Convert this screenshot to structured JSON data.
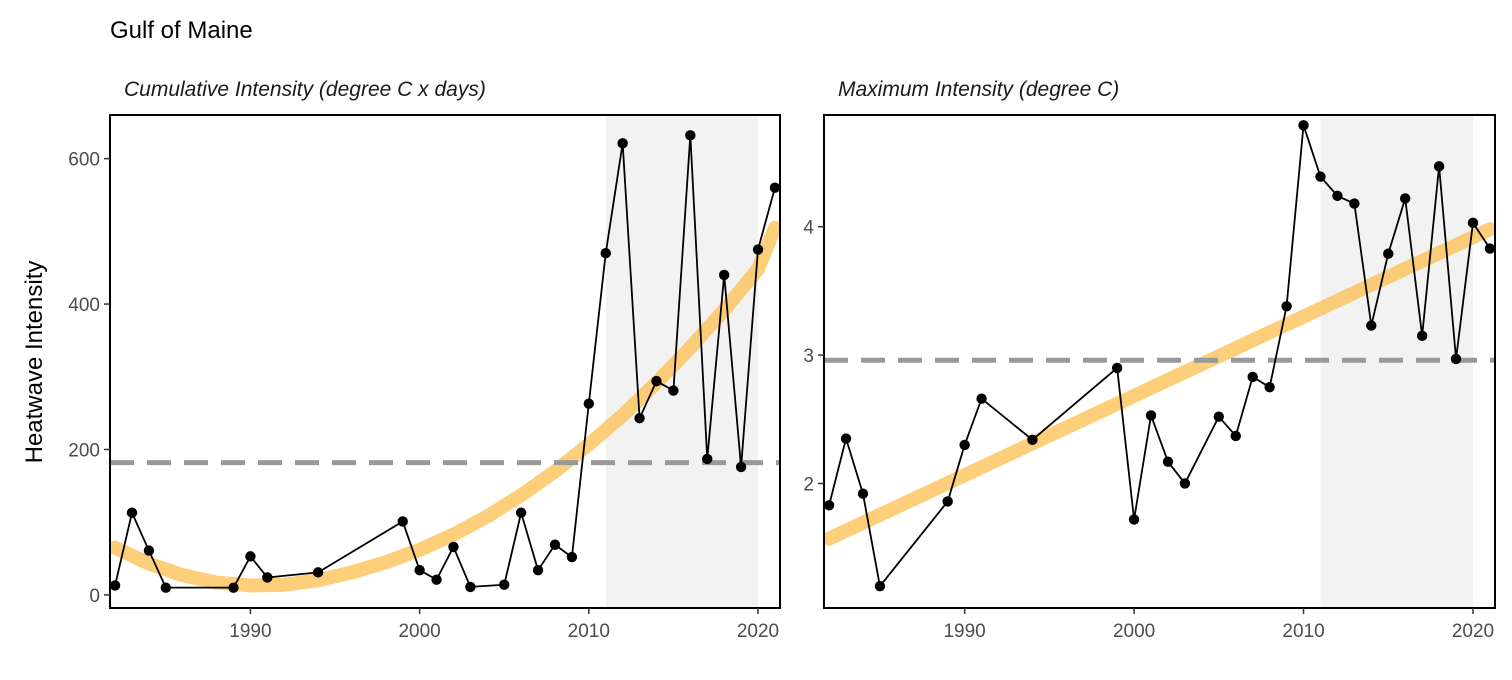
{
  "title": "Gulf of Maine",
  "ylabel": "Heatwave Intensity",
  "chart_data": [
    {
      "type": "line",
      "facet_title": "Cumulative Intensity (degree C x days)",
      "xlim": [
        1981.7,
        2021.3
      ],
      "ylim": [
        -18,
        660
      ],
      "x_ticks": [
        1990,
        2000,
        2010,
        2020
      ],
      "y_ticks": [
        0,
        200,
        400,
        600
      ],
      "grid": false,
      "shaded_period": [
        2011,
        2020
      ],
      "reference_line": 182,
      "series": [
        {
          "type": "line+points",
          "points": [
            [
              1982,
              13
            ],
            [
              1983,
              113
            ],
            [
              1984,
              61
            ],
            [
              1985,
              10
            ],
            [
              1989,
              10
            ],
            [
              1990,
              53
            ],
            [
              1991,
              24
            ],
            [
              1994,
              31
            ],
            [
              1999,
              101
            ],
            [
              2000,
              34
            ],
            [
              2001,
              21
            ],
            [
              2002,
              66
            ],
            [
              2003,
              11
            ],
            [
              2005,
              14
            ],
            [
              2006,
              113
            ],
            [
              2007,
              34
            ],
            [
              2008,
              69
            ],
            [
              2009,
              52
            ],
            [
              2010,
              263
            ],
            [
              2011,
              470
            ],
            [
              2012,
              621
            ],
            [
              2013,
              243
            ],
            [
              2014,
              294
            ],
            [
              2015,
              281
            ],
            [
              2016,
              632
            ],
            [
              2017,
              187
            ],
            [
              2018,
              440
            ],
            [
              2019,
              176
            ],
            [
              2020,
              475
            ],
            [
              2021,
              560
            ]
          ]
        },
        {
          "type": "trend",
          "points": [
            [
              1982,
              65
            ],
            [
              1984,
              43
            ],
            [
              1986,
              27
            ],
            [
              1988,
              17
            ],
            [
              1990,
              13
            ],
            [
              1992,
              14
            ],
            [
              1994,
              20
            ],
            [
              1996,
              31
            ],
            [
              1998,
              45
            ],
            [
              2000,
              62
            ],
            [
              2002,
              83
            ],
            [
              2004,
              108
            ],
            [
              2006,
              137
            ],
            [
              2008,
              170
            ],
            [
              2010,
              207
            ],
            [
              2012,
              247
            ],
            [
              2014,
              292
            ],
            [
              2016,
              340
            ],
            [
              2018,
              392
            ],
            [
              2020,
              448
            ],
            [
              2021,
              505
            ]
          ]
        }
      ]
    },
    {
      "type": "line",
      "facet_title": "Maximum Intensity (degree C)",
      "xlim": [
        1981.7,
        2021.3
      ],
      "ylim": [
        1.03,
        4.87
      ],
      "x_ticks": [
        1990,
        2000,
        2010,
        2020
      ],
      "y_ticks": [
        2,
        3,
        4
      ],
      "grid": false,
      "shaded_period": [
        2011,
        2020
      ],
      "reference_line": 2.96,
      "series": [
        {
          "type": "line+points",
          "points": [
            [
              1982,
              1.83
            ],
            [
              1983,
              2.35
            ],
            [
              1984,
              1.92
            ],
            [
              1985,
              1.2
            ],
            [
              1989,
              1.86
            ],
            [
              1990,
              2.3
            ],
            [
              1991,
              2.66
            ],
            [
              1994,
              2.34
            ],
            [
              1999,
              2.9
            ],
            [
              2000,
              1.72
            ],
            [
              2001,
              2.53
            ],
            [
              2002,
              2.17
            ],
            [
              2003,
              2.0
            ],
            [
              2005,
              2.52
            ],
            [
              2006,
              2.37
            ],
            [
              2007,
              2.83
            ],
            [
              2008,
              2.75
            ],
            [
              2009,
              3.38
            ],
            [
              2010,
              4.79
            ],
            [
              2011,
              4.39
            ],
            [
              2012,
              4.24
            ],
            [
              2013,
              4.18
            ],
            [
              2014,
              3.23
            ],
            [
              2015,
              3.79
            ],
            [
              2016,
              4.22
            ],
            [
              2017,
              3.15
            ],
            [
              2018,
              4.47
            ],
            [
              2019,
              2.97
            ],
            [
              2020,
              4.03
            ],
            [
              2021,
              3.83
            ]
          ]
        },
        {
          "type": "trend",
          "points": [
            [
              1982,
              1.57
            ],
            [
              2021,
              3.98
            ]
          ]
        }
      ]
    }
  ]
}
